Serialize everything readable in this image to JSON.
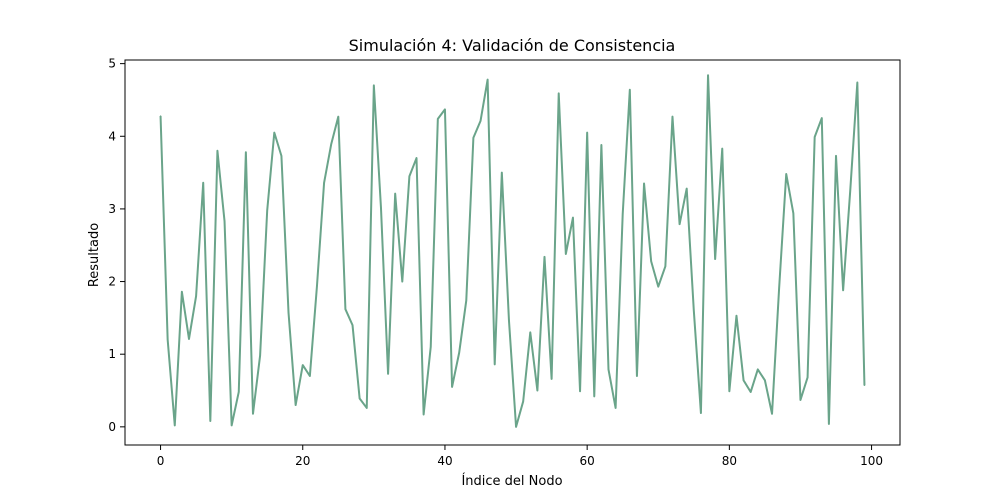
{
  "chart_data": {
    "type": "line",
    "title": "Simulación 4: Validación de Consistencia",
    "xlabel": "Índice del Nodo",
    "ylabel": "Resultado",
    "xlim": [
      -5,
      104
    ],
    "ylim": [
      -0.25,
      5.05
    ],
    "xticks": [
      0,
      20,
      40,
      60,
      80,
      100
    ],
    "yticks": [
      0,
      1,
      2,
      3,
      4,
      5
    ],
    "grid": false,
    "series": [
      {
        "color": "#6aa48a",
        "x": [
          0,
          1,
          2,
          3,
          4,
          5,
          6,
          7,
          8,
          9,
          10,
          11,
          12,
          13,
          14,
          15,
          16,
          17,
          18,
          19,
          20,
          21,
          22,
          23,
          24,
          25,
          26,
          27,
          28,
          29,
          30,
          31,
          32,
          33,
          34,
          35,
          36,
          37,
          38,
          39,
          40,
          41,
          42,
          43,
          44,
          45,
          46,
          47,
          48,
          49,
          50,
          51,
          52,
          53,
          54,
          55,
          56,
          57,
          58,
          59,
          60,
          61,
          62,
          63,
          64,
          65,
          66,
          67,
          68,
          69,
          70,
          71,
          72,
          73,
          74,
          75,
          76,
          77,
          78,
          79,
          80,
          81,
          82,
          83,
          84,
          85,
          86,
          87,
          88,
          89,
          90,
          91,
          92,
          93,
          94,
          95,
          96,
          97,
          98,
          99
        ],
        "values": [
          4.28,
          1.2,
          0.02,
          1.86,
          1.21,
          1.8,
          3.36,
          0.08,
          3.8,
          2.83,
          0.02,
          0.48,
          3.78,
          0.18,
          0.98,
          2.98,
          4.05,
          3.73,
          1.57,
          0.3,
          0.85,
          0.7,
          1.94,
          3.36,
          3.89,
          4.27,
          1.62,
          1.4,
          0.39,
          0.26,
          4.7,
          3.02,
          0.73,
          3.21,
          2.0,
          3.45,
          3.7,
          0.17,
          1.1,
          4.24,
          4.37,
          0.55,
          1.02,
          1.74,
          3.98,
          4.21,
          4.78,
          0.86,
          3.5,
          1.47,
          0.0,
          0.35,
          1.3,
          0.5,
          2.34,
          0.66,
          4.59,
          2.38,
          2.88,
          0.49,
          4.05,
          0.42,
          3.88,
          0.79,
          0.26,
          2.93,
          4.64,
          0.7,
          3.35,
          2.28,
          1.93,
          2.21,
          4.27,
          2.79,
          3.28,
          1.6,
          0.19,
          4.84,
          2.31,
          3.83,
          0.49,
          1.53,
          0.64,
          0.48,
          0.79,
          0.64,
          0.18,
          1.91,
          3.48,
          2.94,
          0.37,
          0.68,
          3.99,
          4.25,
          0.04,
          3.73,
          1.88,
          3.25,
          4.74,
          0.57
        ]
      }
    ]
  }
}
